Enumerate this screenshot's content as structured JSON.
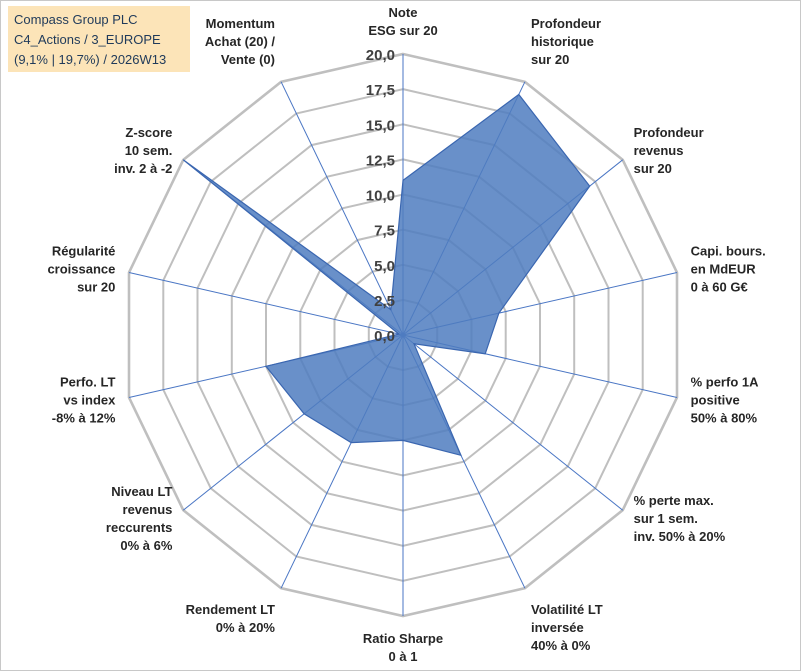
{
  "title_box": {
    "line1": "Compass Group PLC",
    "line2": "C4_Actions / 3_EUROPE",
    "line3": "(9,1% | 19,7%) / 2026W13"
  },
  "colors": {
    "fill": "#4f7dbf",
    "stroke": "#3a66b0",
    "grid": "#bfbfbf",
    "spoke": "#4a76c4",
    "title_bg": "#fce4b8"
  },
  "chart_data": {
    "type": "radar",
    "title": "Compass Group PLC",
    "rlim": [
      0,
      20
    ],
    "ticks": [
      "0,0",
      "2,5",
      "5,0",
      "7,5",
      "10,0",
      "12,5",
      "15,0",
      "17,5",
      "20,0"
    ],
    "grid": true,
    "categories": [
      [
        "Note",
        "ESG sur 20"
      ],
      [
        "Profondeur",
        "historique",
        "sur 20"
      ],
      [
        "Profondeur",
        "revenus",
        "sur 20"
      ],
      [
        "Capi. bours.",
        "en MdEUR",
        "0 à 60 G€"
      ],
      [
        "% perfo 1A",
        "positive",
        "50% à 80%"
      ],
      [
        "% perte max.",
        "sur 1 sem.",
        "inv. 50% à 20%"
      ],
      [
        "Volatilité LT",
        "inversée",
        "40% à 0%"
      ],
      [
        "Ratio Sharpe",
        "0 à 1"
      ],
      [
        "Rendement LT",
        "0% à 20%"
      ],
      [
        "Niveau LT",
        "revenus",
        "reccurents",
        "0% à 6%"
      ],
      [
        "Perfo. LT",
        "vs index",
        "-8% à 12%"
      ],
      [
        "Régularité",
        "croissance",
        "sur 20"
      ],
      [
        "Z-score",
        "10 sem.",
        "inv. 2 à -2"
      ],
      [
        "Momentum",
        "Achat (20) /",
        "Vente (0)"
      ]
    ],
    "series": [
      {
        "name": "Compass Group PLC",
        "values": [
          11,
          19,
          17,
          7,
          6,
          1,
          9.5,
          7.5,
          8.5,
          9,
          10,
          0.3,
          20,
          2
        ]
      }
    ]
  }
}
